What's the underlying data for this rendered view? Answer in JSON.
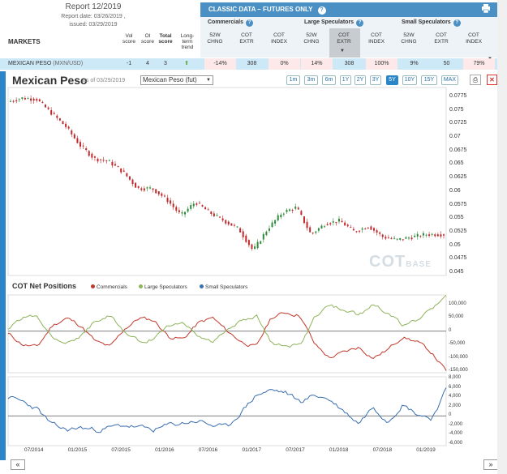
{
  "report": {
    "title": "Report 12/2019",
    "report_date": "Report date: 03/26/2019 ,",
    "issued": "issued: 03/29/2019"
  },
  "markets_label": "MARKETS",
  "columns": {
    "oi_vol": "Vol score",
    "oi": "OI score",
    "total": "Total score",
    "trend": "Long-term trend"
  },
  "classic": {
    "title": "CLASSIC DATA – FUTURES ONLY",
    "help": "?"
  },
  "groups": [
    {
      "name": "Commercials",
      "subs": [
        "52W CHNG",
        "COT EXTR",
        "COT INDEX"
      ]
    },
    {
      "name": "Large Speculators",
      "subs": [
        "52W CHNG",
        "COT EXTR",
        "COT INDEX"
      ]
    },
    {
      "name": "Small Speculators",
      "subs": [
        "52W CHNG",
        "COT EXTR",
        "COT INDEX"
      ]
    }
  ],
  "row": {
    "market": "MEXICAN PESO",
    "code": "(MXN/USD)",
    "vol_score": "-1",
    "oi_score": "4",
    "total_score": "3",
    "trend": "up",
    "comm_52w": "-14%",
    "comm_extr": "308",
    "comm_index": "0%",
    "large_52w": "14%",
    "large_extr": "308",
    "large_index": "100%",
    "small_52w": "9%",
    "small_extr": "50",
    "small_index": "79%"
  },
  "chart": {
    "title": "Mexican Peso",
    "as_of": "as of 03/29/2019",
    "selector": "Mexican Peso (fut)",
    "ranges": [
      "1m",
      "3m",
      "6m",
      "1Y",
      "2Y",
      "3Y",
      "5Y",
      "10Y",
      "15Y",
      "MAX"
    ],
    "active_range": "5Y",
    "watermark_main": "COT",
    "watermark_sub": "BASE",
    "cot_title": "COT Net Positions",
    "legend": [
      "Commercials",
      "Large Speculators",
      "Small Speculators"
    ],
    "nav_prev": "«",
    "nav_next": "»"
  },
  "chart_data": [
    {
      "type": "line",
      "title": "Mexican Peso",
      "ylabel": "",
      "ylim": [
        0.045,
        0.0775
      ],
      "y_ticks": [
        "0.0775",
        "0.075",
        "0.0725",
        "0.07",
        "0.0675",
        "0.065",
        "0.0625",
        "0.06",
        "0.0575",
        "0.055",
        "0.0525",
        "0.05",
        "0.0475",
        "0.045"
      ],
      "x": [
        0,
        2,
        4,
        6,
        8,
        10,
        12,
        14,
        16,
        18,
        20,
        22,
        24,
        26,
        28,
        30,
        32,
        34,
        36,
        38,
        40,
        42,
        44,
        46,
        48,
        50,
        52,
        54,
        56,
        58,
        60
      ],
      "series": [
        {
          "values": [
            0.0765,
            0.0772,
            0.077,
            0.0745,
            0.072,
            0.0685,
            0.066,
            0.0655,
            0.0635,
            0.0605,
            0.0605,
            0.0585,
            0.0555,
            0.058,
            0.056,
            0.0545,
            0.053,
            0.049,
            0.053,
            0.056,
            0.057,
            0.052,
            0.054,
            0.0545,
            0.0525,
            0.0535,
            0.0515,
            0.051,
            0.0515,
            0.052,
            0.052
          ]
        }
      ]
    },
    {
      "type": "line",
      "title": "COT Net Positions",
      "ylim": [
        -150000,
        130000
      ],
      "y_ticks": [
        "100,000",
        "50,000",
        "0",
        "-50,000",
        "-100,000",
        "-150,000"
      ],
      "x": [
        0,
        2,
        4,
        6,
        8,
        10,
        12,
        14,
        16,
        18,
        20,
        22,
        24,
        26,
        28,
        30,
        32,
        34,
        36,
        38,
        40,
        42,
        44,
        46,
        48,
        50,
        52,
        54,
        56,
        58,
        60
      ],
      "series": [
        {
          "name": "Commercials",
          "values": [
            -10000,
            -50000,
            -60000,
            20000,
            50000,
            20000,
            -40000,
            -60000,
            10000,
            50000,
            40000,
            -20000,
            -30000,
            30000,
            50000,
            0,
            -40000,
            -60000,
            50000,
            70000,
            60000,
            -50000,
            -100000,
            -80000,
            -60000,
            -100000,
            -70000,
            -20000,
            -40000,
            -80000,
            -150000
          ]
        },
        {
          "name": "Large Speculators",
          "values": [
            10000,
            50000,
            60000,
            -20000,
            -40000,
            -20000,
            40000,
            60000,
            -10000,
            -40000,
            -30000,
            20000,
            30000,
            -20000,
            -40000,
            0,
            40000,
            60000,
            -40000,
            -60000,
            -50000,
            50000,
            100000,
            80000,
            60000,
            100000,
            70000,
            20000,
            40000,
            80000,
            130000
          ]
        }
      ]
    },
    {
      "type": "line",
      "ylim": [
        -6000,
        8000
      ],
      "y_ticks": [
        "8,000",
        "6,000",
        "4,000",
        "2,000",
        "0",
        "-2,000",
        "-4,000",
        "-6,000"
      ],
      "x_ticks": [
        "07/2014",
        "01/2015",
        "07/2015",
        "01/2016",
        "07/2016",
        "01/2017",
        "07/2017",
        "01/2018",
        "07/2018",
        "01/2019"
      ],
      "x": [
        0,
        2,
        4,
        6,
        8,
        10,
        12,
        14,
        16,
        18,
        20,
        22,
        24,
        26,
        28,
        30,
        32,
        34,
        36,
        38,
        40,
        42,
        44,
        46,
        48,
        50,
        52,
        54,
        56,
        58,
        60
      ],
      "series": [
        {
          "name": "Small Speculators",
          "values": [
            4000,
            3000,
            1500,
            -2000,
            -3000,
            -2500,
            -3000,
            -2500,
            -2000,
            -2500,
            -3000,
            -2000,
            -1500,
            -1000,
            -2000,
            -2500,
            1000,
            4500,
            5500,
            5000,
            3000,
            4500,
            3500,
            1000,
            -1500,
            2000,
            -1000,
            2500,
            500,
            -500,
            5500
          ]
        }
      ]
    }
  ],
  "colors": {
    "accent": "#2a86c8",
    "header": "#4a90c4",
    "row": "#cde8f7",
    "commercials": "#c0392b",
    "large": "#8fb35a",
    "small": "#3a6fb0",
    "candle_up": "#2e8b3a",
    "candle_down": "#c0282b"
  }
}
